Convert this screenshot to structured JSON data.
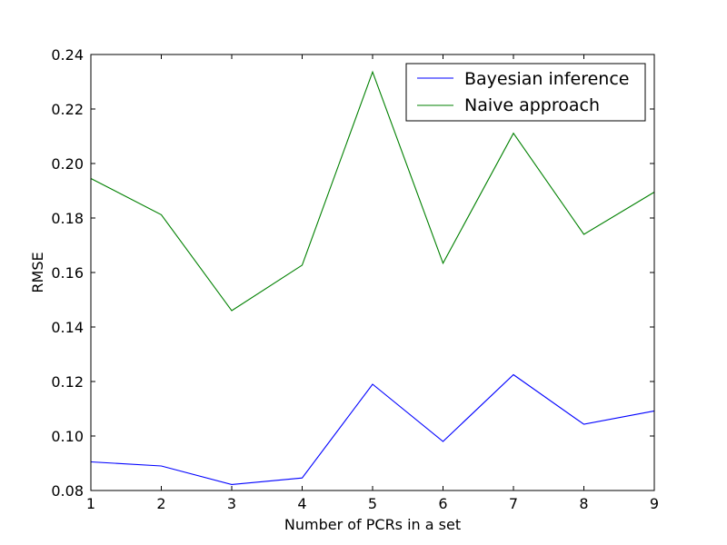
{
  "chart_data": {
    "type": "line",
    "title": "",
    "xlabel": "Number of PCRs in a set",
    "ylabel": "RMSE",
    "xlim": [
      1,
      9
    ],
    "ylim": [
      0.08,
      0.24
    ],
    "grid": false,
    "legend_position": "top-right",
    "x": [
      1,
      2,
      3,
      4,
      5,
      6,
      7,
      8,
      9
    ],
    "x_ticks": [
      "1",
      "2",
      "3",
      "4",
      "5",
      "6",
      "7",
      "8",
      "9"
    ],
    "y_tick_values": [
      0.08,
      0.1,
      0.12,
      0.14,
      0.16,
      0.18,
      0.2,
      0.22,
      0.24
    ],
    "y_ticks": [
      "0.08",
      "0.10",
      "0.12",
      "0.14",
      "0.16",
      "0.18",
      "0.20",
      "0.22",
      "0.24"
    ],
    "series": [
      {
        "name": "Bayesian inference",
        "color": "#0000ff",
        "values": [
          0.0905,
          0.089,
          0.0822,
          0.0846,
          0.119,
          0.098,
          0.1225,
          0.1043,
          0.1092
        ]
      },
      {
        "name": "Naive approach",
        "color": "#008000",
        "values": [
          0.1945,
          0.1812,
          0.146,
          0.1627,
          0.2336,
          0.1634,
          0.2111,
          0.174,
          0.1895
        ]
      }
    ]
  }
}
